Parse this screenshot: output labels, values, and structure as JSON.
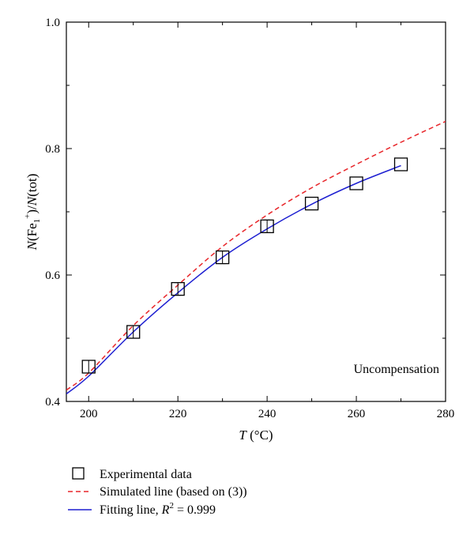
{
  "chart_data": {
    "type": "line",
    "xlabel": {
      "var": "T",
      "unit": " (°C)"
    },
    "ylabel": {
      "pre": "N",
      "ion": "(Fe",
      "sub": "1",
      "sup": "+",
      "mid": ")/",
      "var2": "N",
      "post": "(tot)"
    },
    "xlim": [
      195,
      280
    ],
    "ylim": [
      0.4,
      1.0
    ],
    "xticks": [
      200,
      220,
      240,
      260,
      280
    ],
    "yticks": [
      0.4,
      0.6,
      0.8,
      1.0
    ],
    "xtick_labels": [
      "200",
      "220",
      "240",
      "260",
      "280"
    ],
    "ytick_labels": [
      "0.4",
      "0.6",
      "0.8",
      "1.0"
    ],
    "grid": false,
    "annotation": "Uncompensation",
    "legend_position": "below",
    "series": [
      {
        "name": "Experimental data",
        "kind": "scatter",
        "marker": "open-square",
        "color": "#000000",
        "x": [
          200,
          210,
          220,
          230,
          240,
          250,
          260,
          270
        ],
        "y": [
          0.455,
          0.51,
          0.578,
          0.628,
          0.677,
          0.713,
          0.745,
          0.775
        ],
        "yerr": [
          0.01,
          0.01,
          0.01,
          0.01,
          0.01,
          0.0,
          0.0,
          0.0
        ]
      },
      {
        "name": "Simulated line (based on (3))",
        "kind": "line",
        "style": "dashed",
        "color": "#e8262a",
        "x": [
          195,
          200,
          210,
          220,
          230,
          240,
          250,
          260,
          270,
          280
        ],
        "y": [
          0.418,
          0.445,
          0.52,
          0.584,
          0.645,
          0.695,
          0.738,
          0.775,
          0.81,
          0.843
        ]
      },
      {
        "name": "Fitting line",
        "name_suffix": {
          "var": "R",
          "sup": "2",
          "rest": " = 0.999"
        },
        "kind": "line",
        "style": "solid",
        "color": "#1d1fd1",
        "x": [
          195,
          200,
          210,
          220,
          230,
          240,
          250,
          260,
          270
        ],
        "y": [
          0.412,
          0.44,
          0.51,
          0.572,
          0.628,
          0.673,
          0.712,
          0.745,
          0.773
        ]
      }
    ]
  }
}
